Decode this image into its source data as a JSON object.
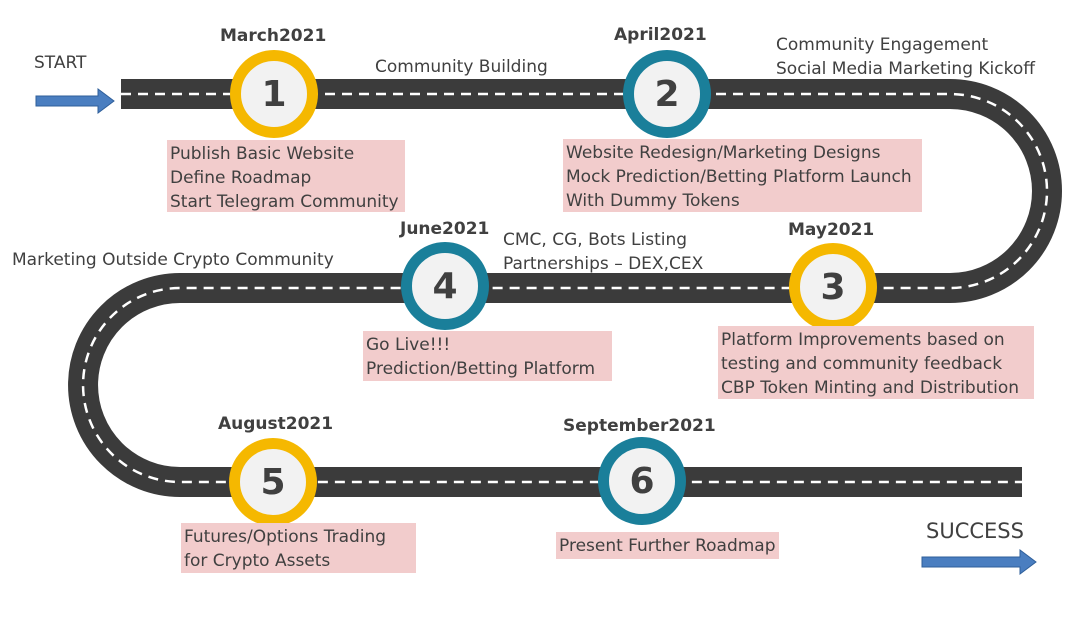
{
  "start_label": "START",
  "success_label": "SUCCESS",
  "colors": {
    "road": "#3b3b3b",
    "dash": "#ffffff",
    "yellow": "#f5b800",
    "teal": "#1a7f9a",
    "note_bg": "#f2cccc",
    "arrow": "#4a7ec0"
  },
  "milestones": [
    {
      "number": "1",
      "date": "March2021",
      "style": "yellow"
    },
    {
      "number": "2",
      "date": "April2021",
      "style": "teal"
    },
    {
      "number": "3",
      "date": "May2021",
      "style": "yellow"
    },
    {
      "number": "4",
      "date": "June2021",
      "style": "teal"
    },
    {
      "number": "5",
      "date": "August2021",
      "style": "yellow"
    },
    {
      "number": "6",
      "date": "September2021",
      "style": "teal"
    }
  ],
  "road_labels": {
    "community_building": "Community Building",
    "engagement_1": "Community Engagement",
    "engagement_2": "Social Media Marketing Kickoff",
    "listing_1": "CMC, CG, Bots Listing",
    "listing_2": "Partnerships – DEX,CEX",
    "outside": "Marketing Outside Crypto Community"
  },
  "notes": {
    "m1": [
      "Publish Basic Website",
      "Define Roadmap",
      "Start Telegram Community"
    ],
    "m2": [
      "Website Redesign/Marketing Designs",
      "Mock Prediction/Betting Platform Launch",
      "With Dummy Tokens"
    ],
    "m3": [
      "Platform Improvements based on",
      "testing and community feedback",
      "CBP Token Minting and Distribution"
    ],
    "m4": [
      "Go Live!!!",
      "Prediction/Betting Platform"
    ],
    "m5": [
      "Futures/Options Trading",
      "for Crypto Assets"
    ],
    "m6": [
      "Present Further Roadmap"
    ]
  }
}
